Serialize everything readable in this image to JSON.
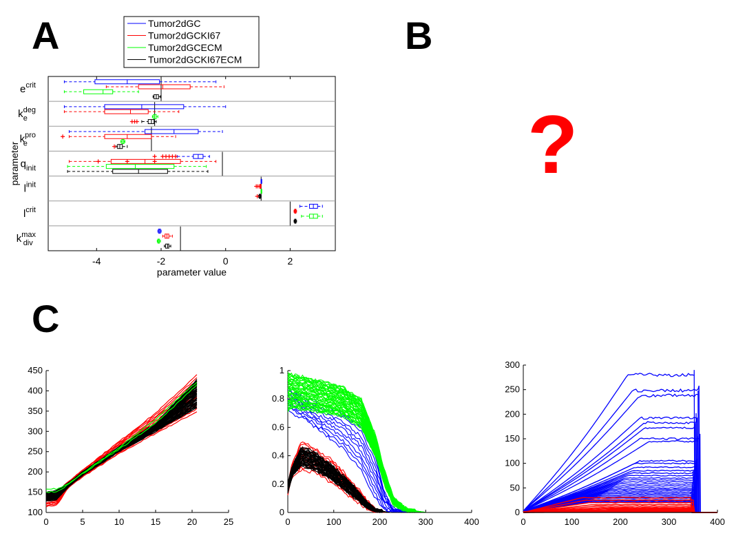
{
  "panels": {
    "a": "A",
    "b": "B",
    "c": "C",
    "placeholder": "?"
  },
  "colors": {
    "blue": "#0000ff",
    "red": "#ff0000",
    "green": "#00ff00",
    "black": "#000000",
    "separator": "#999999"
  },
  "chart_data": [
    {
      "type": "box",
      "xlabel": "parameter value",
      "ylabel": "parameter",
      "xlim": [
        -5.5,
        3.4
      ],
      "xticks": [
        "-4",
        "-2",
        "0",
        "2"
      ],
      "xtick_values": [
        -4,
        -2,
        0,
        2
      ],
      "legend": {
        "position": "top",
        "entries": [
          {
            "name": "Tumor2dGC",
            "color": "#0000ff"
          },
          {
            "name": "Tumor2dGCKI67",
            "color": "#ff0000"
          },
          {
            "name": "Tumor2dGCECM",
            "color": "#00ff00"
          },
          {
            "name": "Tumor2dGCKI67ECM",
            "color": "#000000"
          }
        ]
      },
      "parameters": [
        {
          "base": "e",
          "sup": "crit",
          "sub": "",
          "ref": -2.0,
          "boxes": [
            {
              "series": 0,
              "wlo": -5.0,
              "q1": -4.05,
              "med": -3.05,
              "q3": -2.05,
              "whi": -0.3,
              "out": []
            },
            {
              "series": 1,
              "wlo": -3.7,
              "q1": -2.7,
              "med": -1.95,
              "q3": -1.1,
              "whi": -0.05,
              "out": []
            },
            {
              "series": 2,
              "wlo": -5.0,
              "q1": -4.4,
              "med": -3.8,
              "q3": -3.5,
              "whi": -2.7,
              "out": []
            },
            {
              "series": 3,
              "wlo": -2.25,
              "q1": -2.22,
              "med": -2.15,
              "q3": -2.08,
              "whi": -2.02,
              "out": []
            }
          ]
        },
        {
          "base": "k",
          "sup": "deg",
          "sub": "e",
          "ref": -2.2,
          "boxes": [
            {
              "series": 0,
              "wlo": -5.0,
              "q1": -3.75,
              "med": -2.6,
              "q3": -1.3,
              "whi": 0.0,
              "out": []
            },
            {
              "series": 1,
              "wlo": -5.0,
              "q1": -3.75,
              "med": -2.95,
              "q3": -2.4,
              "whi": -1.45,
              "out": []
            },
            {
              "series": 2,
              "wlo": -2.27,
              "q1": -2.24,
              "med": -2.2,
              "q3": -2.15,
              "whi": -2.1,
              "out": []
            },
            {
              "series": 3,
              "wlo": -2.6,
              "q1": -2.4,
              "med": -2.3,
              "q3": -2.22,
              "whi": -2.15,
              "out": [
                -2.9,
                -2.82,
                -2.75
              ]
            }
          ]
        },
        {
          "base": "k",
          "sup": "pro",
          "sub": "e",
          "ref": -2.3,
          "boxes": [
            {
              "series": 0,
              "wlo": -4.85,
              "q1": -2.5,
              "med": -1.6,
              "q3": -0.85,
              "whi": -0.1,
              "out": []
            },
            {
              "series": 1,
              "wlo": -4.85,
              "q1": -3.75,
              "med": -3.05,
              "q3": -2.3,
              "whi": -1.55,
              "out": [
                -5.05
              ]
            },
            {
              "series": 2,
              "wlo": -3.25,
              "q1": -3.22,
              "med": -3.18,
              "q3": -3.15,
              "whi": -3.12,
              "out": []
            },
            {
              "series": 3,
              "wlo": -3.4,
              "q1": -3.35,
              "med": -3.28,
              "q3": -3.2,
              "whi": -3.05,
              "out": [
                -3.45
              ]
            }
          ]
        },
        {
          "base": "q",
          "sup": "",
          "sub": "init",
          "ref": -0.1,
          "boxes": [
            {
              "series": 0,
              "wlo": -1.5,
              "q1": -1.0,
              "med": -0.85,
              "q3": -0.7,
              "whi": -0.5,
              "out": [
                -2.2,
                -1.95,
                -1.85,
                -1.75,
                -1.65,
                -1.55
              ]
            },
            {
              "series": 1,
              "wlo": -4.85,
              "q1": -3.55,
              "med": -2.5,
              "q3": -1.4,
              "whi": -0.3,
              "out": [
                -3.95,
                -3.05,
                -2.2
              ]
            },
            {
              "series": 2,
              "wlo": -4.9,
              "q1": -3.7,
              "med": -2.8,
              "q3": -1.6,
              "whi": -0.6,
              "out": []
            },
            {
              "series": 3,
              "wlo": -4.9,
              "q1": -3.5,
              "med": -2.7,
              "q3": -1.8,
              "whi": -0.55,
              "out": []
            }
          ]
        },
        {
          "base": "l",
          "sup": "init",
          "sub": "",
          "ref": 1.1,
          "boxes": [
            {
              "series": 0,
              "wlo": 1.1,
              "q1": 1.1,
              "med": 1.1,
              "q3": 1.1,
              "whi": 1.1,
              "out": []
            },
            {
              "series": 1,
              "wlo": 1.05,
              "q1": 1.06,
              "med": 1.08,
              "q3": 1.09,
              "whi": 1.1,
              "out": [
                0.95,
                1.0
              ]
            },
            {
              "series": 2,
              "wlo": 1.1,
              "q1": 1.1,
              "med": 1.1,
              "q3": 1.1,
              "whi": 1.1,
              "out": []
            },
            {
              "series": 3,
              "wlo": 1.02,
              "q1": 1.04,
              "med": 1.06,
              "q3": 1.08,
              "whi": 1.1,
              "out": [
                0.98
              ]
            }
          ]
        },
        {
          "base": "l",
          "sup": "crit",
          "sub": "",
          "ref": 2.0,
          "boxes": [
            {
              "series": 0,
              "wlo": 2.3,
              "q1": 2.6,
              "med": 2.72,
              "q3": 2.85,
              "whi": 3.0,
              "out": []
            },
            {
              "series": 1,
              "wlo": 2.12,
              "q1": 2.14,
              "med": 2.16,
              "q3": 2.18,
              "whi": 2.2,
              "out": []
            },
            {
              "series": 2,
              "wlo": 2.35,
              "q1": 2.6,
              "med": 2.72,
              "q3": 2.85,
              "whi": 3.0,
              "out": []
            },
            {
              "series": 3,
              "wlo": 2.12,
              "q1": 2.14,
              "med": 2.16,
              "q3": 2.18,
              "whi": 2.2,
              "out": []
            }
          ]
        },
        {
          "base": "k",
          "sup": "max",
          "sub": "div",
          "ref": -1.4,
          "boxes": [
            {
              "series": 0,
              "wlo": -2.1,
              "q1": -2.08,
              "med": -2.05,
              "q3": -2.02,
              "whi": -2.0,
              "out": []
            },
            {
              "series": 1,
              "wlo": -1.95,
              "q1": -1.88,
              "med": -1.82,
              "q3": -1.76,
              "whi": -1.65,
              "out": []
            },
            {
              "series": 2,
              "wlo": -2.12,
              "q1": -2.1,
              "med": -2.08,
              "q3": -2.05,
              "whi": -2.02,
              "out": []
            },
            {
              "series": 3,
              "wlo": -1.9,
              "q1": -1.86,
              "med": -1.8,
              "q3": -1.76,
              "whi": -1.7,
              "out": []
            }
          ]
        }
      ]
    },
    {
      "type": "line",
      "xlim": [
        0,
        25
      ],
      "ylim": [
        100,
        450
      ],
      "xticks": [
        "0",
        "5",
        "10",
        "15",
        "20",
        "25"
      ],
      "yticks": [
        "100",
        "150",
        "200",
        "250",
        "300",
        "350",
        "400",
        "450"
      ],
      "bands": [
        {
          "color": "#ff0000",
          "n": 14,
          "x": [
            0,
            1.5,
            3,
            5,
            10,
            15,
            21
          ],
          "lo": [
            115,
            118,
            160,
            188,
            245,
            295,
            352
          ],
          "hi": [
            148,
            150,
            175,
            205,
            275,
            345,
            445
          ]
        },
        {
          "color": "#000000",
          "n": 40,
          "x": [
            0,
            1.5,
            3,
            5,
            10,
            15,
            21
          ],
          "lo": [
            128,
            132,
            163,
            192,
            250,
            300,
            362
          ],
          "hi": [
            150,
            155,
            172,
            200,
            262,
            320,
            435
          ]
        },
        {
          "color": "#00ff00",
          "n": 2,
          "x": [
            0,
            1.5,
            3,
            5,
            10,
            15,
            21
          ],
          "lo": [
            150,
            152,
            168,
            196,
            256,
            320,
            420
          ],
          "hi": [
            158,
            158,
            170,
            198,
            260,
            330,
            428
          ]
        }
      ]
    },
    {
      "type": "line",
      "xlim": [
        0,
        400
      ],
      "ylim": [
        0,
        1
      ],
      "xticks": [
        "0",
        "100",
        "200",
        "300",
        "400"
      ],
      "yticks": [
        "0",
        "0.2",
        "0.4",
        "0.6",
        "0.8",
        "1"
      ],
      "series": [
        {
          "color": "#0000ff",
          "n": 10,
          "x": [
            0,
            10,
            40,
            80,
            120,
            160,
            190,
            210,
            230,
            300,
            400
          ],
          "lo": [
            0.72,
            0.7,
            0.65,
            0.55,
            0.45,
            0.3,
            0.1,
            0.01,
            0,
            0,
            0
          ],
          "hi": [
            0.88,
            0.85,
            0.8,
            0.75,
            0.7,
            0.6,
            0.4,
            0.15,
            0.02,
            0,
            0
          ]
        },
        {
          "color": "#00ff00",
          "n": 45,
          "x": [
            0,
            10,
            40,
            80,
            120,
            160,
            190,
            210,
            230,
            260,
            300,
            400
          ],
          "lo": [
            0.72,
            0.74,
            0.72,
            0.7,
            0.68,
            0.6,
            0.4,
            0.2,
            0.05,
            0.01,
            0,
            0
          ],
          "hi": [
            0.98,
            0.97,
            0.95,
            0.92,
            0.88,
            0.8,
            0.55,
            0.3,
            0.1,
            0.02,
            0,
            0
          ]
        },
        {
          "color": "#ff0000",
          "n": 12,
          "x": [
            0,
            10,
            30,
            60,
            100,
            140,
            170,
            190,
            220,
            400
          ],
          "lo": [
            0.12,
            0.26,
            0.3,
            0.28,
            0.2,
            0.1,
            0.03,
            0,
            0,
            0
          ],
          "hi": [
            0.2,
            0.35,
            0.5,
            0.45,
            0.36,
            0.22,
            0.1,
            0.02,
            0,
            0
          ]
        },
        {
          "color": "#000000",
          "n": 40,
          "x": [
            0,
            10,
            30,
            60,
            100,
            140,
            170,
            190,
            220,
            400
          ],
          "lo": [
            0.14,
            0.26,
            0.33,
            0.3,
            0.22,
            0.12,
            0.04,
            0.01,
            0,
            0
          ],
          "hi": [
            0.2,
            0.33,
            0.46,
            0.42,
            0.32,
            0.2,
            0.08,
            0.02,
            0,
            0
          ]
        }
      ]
    },
    {
      "type": "line",
      "xlim": [
        0,
        400
      ],
      "ylim": [
        0,
        300
      ],
      "xticks": [
        "0",
        "100",
        "200",
        "300",
        "400"
      ],
      "yticks": [
        "0",
        "50",
        "100",
        "150",
        "200",
        "250",
        "300"
      ],
      "blue_plateaus": [
        280,
        248,
        238,
        192,
        183,
        172,
        150,
        145,
        105,
        100,
        92,
        85,
        80,
        75,
        70,
        66,
        62,
        58,
        54,
        50,
        47,
        44,
        41,
        38,
        35,
        32,
        29,
        26,
        24,
        22,
        20
      ],
      "rise_end": [
        215,
        225,
        240,
        240,
        250,
        250,
        240,
        260,
        240,
        230,
        230,
        225,
        220,
        215,
        210,
        205,
        200,
        195,
        190,
        185,
        180,
        175,
        170,
        165,
        160,
        155,
        150,
        145,
        140,
        135,
        130
      ],
      "drop_x": [
        352,
        362,
        360,
        356,
        358,
        354,
        364,
        360,
        358,
        356,
        354,
        352,
        350,
        350,
        352,
        354,
        356,
        350,
        348,
        352,
        354,
        350,
        348,
        346,
        350,
        352,
        348,
        346,
        350,
        348,
        346
      ],
      "red_plateaus": [
        30,
        25,
        20,
        16,
        13,
        10,
        8,
        6,
        4,
        3,
        2,
        1
      ]
    }
  ]
}
